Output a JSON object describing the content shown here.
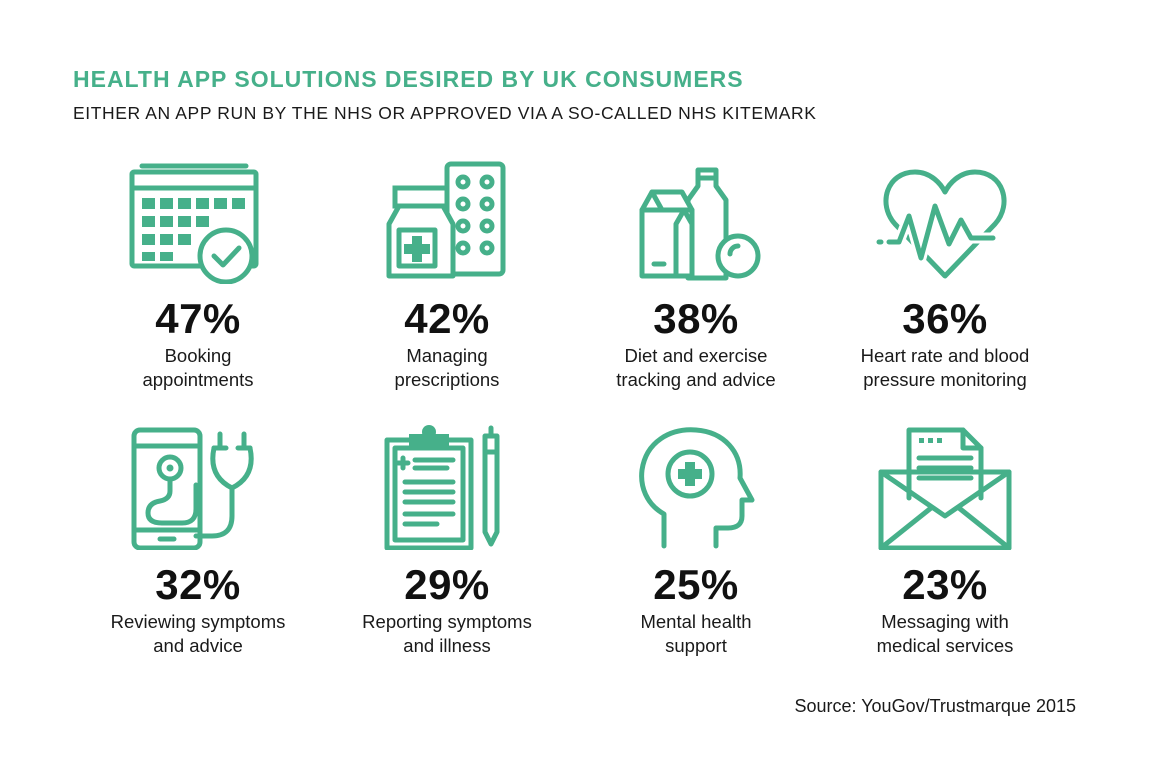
{
  "title": "HEALTH APP SOLUTIONS DESIRED BY UK CONSUMERS",
  "subtitle": "EITHER AN APP RUN BY THE NHS OR APPROVED VIA A SO-CALLED NHS KITEMARK",
  "source": "Source: YouGov/Trustmarque 2015",
  "colors": {
    "accent": "#46b08a",
    "text": "#111111",
    "background": "#ffffff"
  },
  "chart_data": {
    "type": "table",
    "items": [
      {
        "value": 47,
        "display": "47%",
        "label_line1": "Booking",
        "label_line2": "appointments",
        "icon": "calendar-check-icon"
      },
      {
        "value": 42,
        "display": "42%",
        "label_line1": "Managing",
        "label_line2": "prescriptions",
        "icon": "pill-bottle-icon"
      },
      {
        "value": 38,
        "display": "38%",
        "label_line1": "Diet and exercise",
        "label_line2": "tracking and advice",
        "icon": "food-drink-icon"
      },
      {
        "value": 36,
        "display": "36%",
        "label_line1": "Heart rate and blood",
        "label_line2": "pressure monitoring",
        "icon": "heart-rate-icon"
      },
      {
        "value": 32,
        "display": "32%",
        "label_line1": "Reviewing symptoms",
        "label_line2": "and advice",
        "icon": "phone-stethoscope-icon"
      },
      {
        "value": 29,
        "display": "29%",
        "label_line1": "Reporting symptoms",
        "label_line2": "and illness",
        "icon": "clipboard-icon"
      },
      {
        "value": 25,
        "display": "25%",
        "label_line1": "Mental health",
        "label_line2": "support",
        "icon": "head-cross-icon"
      },
      {
        "value": 23,
        "display": "23%",
        "label_line1": "Messaging with",
        "label_line2": "medical services",
        "icon": "envelope-icon"
      }
    ]
  }
}
